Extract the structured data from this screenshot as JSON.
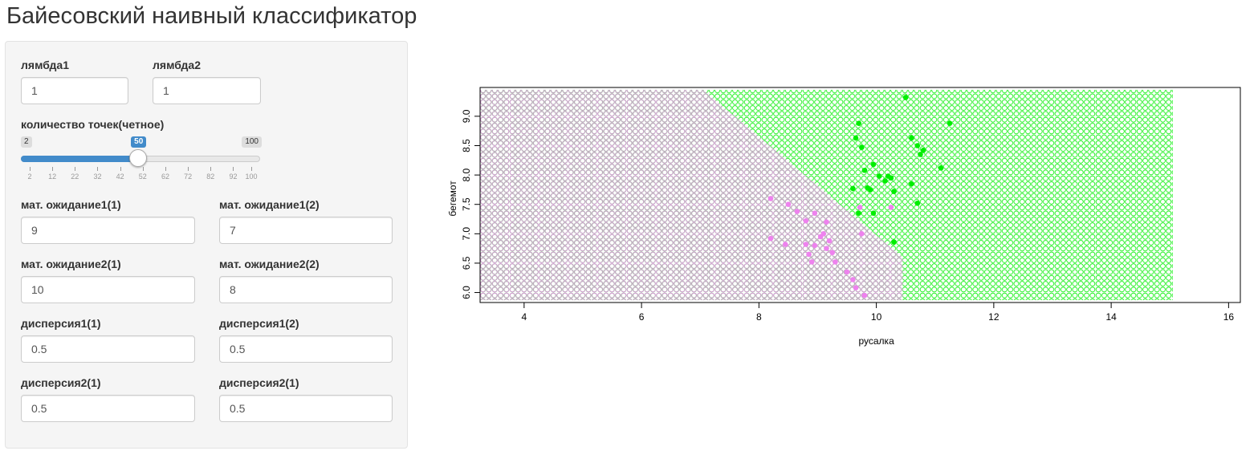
{
  "page": {
    "title": "Байесовский наивный классификатор"
  },
  "controls": {
    "lambda1": {
      "label": "лямбда1",
      "value": "1"
    },
    "lambda2": {
      "label": "лямбда2",
      "value": "1"
    },
    "points": {
      "label": "количество точек(четное)",
      "min": "2",
      "max": "100",
      "value": "50",
      "min_num": 2,
      "max_num": 100,
      "value_num": 50,
      "ticks": [
        "2",
        "12",
        "22",
        "32",
        "42",
        "52",
        "62",
        "72",
        "82",
        "92",
        "100"
      ]
    },
    "mu1_1": {
      "label": "мат. ожидание1(1)",
      "value": "9"
    },
    "mu1_2": {
      "label": "мат. ожидание1(2)",
      "value": "7"
    },
    "mu2_1": {
      "label": "мат. ожидание2(1)",
      "value": "10"
    },
    "mu2_2": {
      "label": "мат. ожидание2(2)",
      "value": "8"
    },
    "d1_1": {
      "label": "дисперсия1(1)",
      "value": "0.5"
    },
    "d1_2": {
      "label": "дисперсия1(2)",
      "value": "0.5"
    },
    "d2_1": {
      "label": "дисперсия2(1)",
      "value": "0.5"
    },
    "d2_2": {
      "label": "дисперсия2(1)",
      "value": "0.5"
    }
  },
  "chart_data": {
    "type": "scatter",
    "xlabel": "русалка",
    "ylabel": "бегемот",
    "xlim": [
      3.25,
      16.2
    ],
    "ylim": [
      5.83,
      9.49
    ],
    "xticks": [
      "4",
      "6",
      "8",
      "10",
      "12",
      "14",
      "16"
    ],
    "yticks": [
      "6.0",
      "6.5",
      "7.0",
      "7.5",
      "8.0",
      "8.5",
      "9.0"
    ],
    "grid": false,
    "legend": "none",
    "classification_map": {
      "x_range": [
        3.25,
        15.05
      ],
      "y_range": [
        5.87,
        9.45
      ],
      "classes": [
        {
          "class": 1,
          "color": "#ee82ee"
        },
        {
          "class": 2,
          "color": "#00ee00"
        }
      ],
      "boundary": [
        [
          7.05,
          9.45
        ],
        [
          10.45,
          6.6
        ],
        [
          10.45,
          5.87
        ]
      ]
    },
    "series": [
      {
        "class": 1,
        "color": "#ee82ee",
        "points": [
          [
            8.2,
            7.6
          ],
          [
            8.5,
            7.5
          ],
          [
            8.65,
            7.38
          ],
          [
            8.95,
            7.35
          ],
          [
            8.8,
            7.22
          ],
          [
            9.15,
            7.2
          ],
          [
            9.1,
            7.0
          ],
          [
            9.2,
            6.88
          ],
          [
            8.95,
            6.8
          ],
          [
            8.8,
            6.82
          ],
          [
            9.05,
            6.95
          ],
          [
            9.15,
            6.75
          ],
          [
            8.85,
            6.65
          ],
          [
            9.25,
            6.68
          ],
          [
            8.9,
            6.52
          ],
          [
            9.3,
            6.52
          ],
          [
            9.5,
            6.35
          ],
          [
            9.6,
            6.22
          ],
          [
            9.65,
            6.08
          ],
          [
            9.8,
            5.95
          ],
          [
            8.2,
            6.92
          ],
          [
            8.45,
            6.82
          ],
          [
            9.75,
            7.0
          ],
          [
            9.72,
            7.45
          ],
          [
            10.25,
            7.45
          ]
        ]
      },
      {
        "class": 2,
        "color": "#00ee00",
        "points": [
          [
            10.5,
            9.32
          ],
          [
            9.7,
            8.88
          ],
          [
            11.25,
            8.88
          ],
          [
            9.65,
            8.63
          ],
          [
            10.6,
            8.63
          ],
          [
            10.7,
            8.5
          ],
          [
            9.75,
            8.47
          ],
          [
            10.8,
            8.42
          ],
          [
            10.75,
            8.35
          ],
          [
            9.95,
            8.18
          ],
          [
            11.1,
            8.12
          ],
          [
            9.8,
            8.08
          ],
          [
            10.05,
            7.98
          ],
          [
            10.2,
            7.98
          ],
          [
            10.25,
            7.95
          ],
          [
            10.15,
            7.9
          ],
          [
            10.6,
            7.85
          ],
          [
            9.6,
            7.77
          ],
          [
            9.9,
            7.75
          ],
          [
            10.3,
            7.72
          ],
          [
            10.7,
            7.52
          ],
          [
            9.7,
            7.35
          ],
          [
            9.95,
            7.35
          ],
          [
            10.3,
            6.86
          ],
          [
            9.85,
            7.78
          ]
        ]
      }
    ]
  },
  "colors": {
    "accent": "#428bca",
    "class1": "#ee82ee",
    "class2": "#00ee00"
  }
}
